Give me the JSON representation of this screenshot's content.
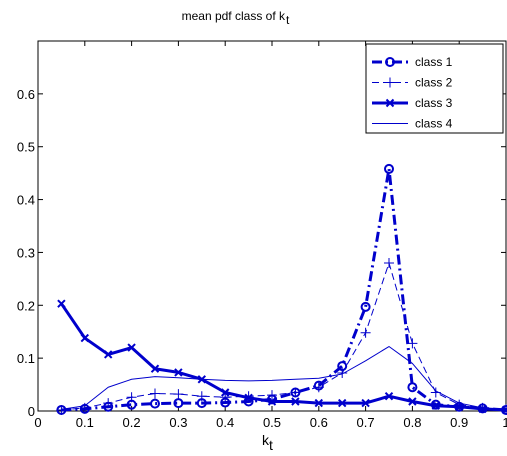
{
  "chart_data": {
    "type": "line",
    "title": "mean pdf class of k",
    "title_subscript": "t",
    "xlabel": "k",
    "xlabel_subscript": "t",
    "ylabel": "",
    "xlim": [
      0,
      1
    ],
    "ylim": [
      0,
      0.7
    ],
    "xticks": [
      "0",
      "0.1",
      "0.2",
      "0.3",
      "0.4",
      "0.5",
      "0.6",
      "0.7",
      "0.8",
      "0.9",
      "1"
    ],
    "yticks": [
      "0",
      "0.1",
      "0.2",
      "0.3",
      "0.4",
      "0.5",
      "0.6"
    ],
    "grid": false,
    "legend_position": "top-right",
    "x": [
      0.05,
      0.1,
      0.15,
      0.2,
      0.25,
      0.3,
      0.35,
      0.4,
      0.45,
      0.5,
      0.55,
      0.6,
      0.65,
      0.7,
      0.75,
      0.8,
      0.85,
      0.9,
      0.95,
      1.0
    ],
    "series": [
      {
        "name": "class 1",
        "color": "#0000cc",
        "line": "dashdot",
        "marker": "circle",
        "width": "thick",
        "values": [
          0.002,
          0.004,
          0.008,
          0.012,
          0.014,
          0.015,
          0.015,
          0.016,
          0.018,
          0.022,
          0.035,
          0.048,
          0.085,
          0.197,
          0.458,
          0.045,
          0.012,
          0.008,
          0.005,
          0.002
        ]
      },
      {
        "name": "class 2",
        "color": "#0000cc",
        "line": "dashed",
        "marker": "plus",
        "width": "thin",
        "values": [
          0.002,
          0.006,
          0.015,
          0.026,
          0.033,
          0.032,
          0.028,
          0.026,
          0.028,
          0.03,
          0.035,
          0.045,
          0.072,
          0.148,
          0.28,
          0.128,
          0.035,
          0.012,
          0.006,
          0.003
        ]
      },
      {
        "name": "class 3",
        "color": "#0000cc",
        "line": "solid",
        "marker": "x",
        "width": "thick",
        "values": [
          0.203,
          0.138,
          0.107,
          0.12,
          0.08,
          0.073,
          0.06,
          0.035,
          0.025,
          0.018,
          0.018,
          0.015,
          0.015,
          0.015,
          0.028,
          0.018,
          0.01,
          0.008,
          0.004,
          0.002
        ]
      },
      {
        "name": "class 4",
        "color": "#0000cc",
        "line": "solid",
        "marker": "none",
        "width": "thin",
        "values": [
          0.003,
          0.01,
          0.045,
          0.06,
          0.065,
          0.063,
          0.06,
          0.058,
          0.057,
          0.058,
          0.06,
          0.062,
          0.07,
          0.095,
          0.122,
          0.09,
          0.038,
          0.015,
          0.006,
          0.002
        ]
      }
    ]
  }
}
